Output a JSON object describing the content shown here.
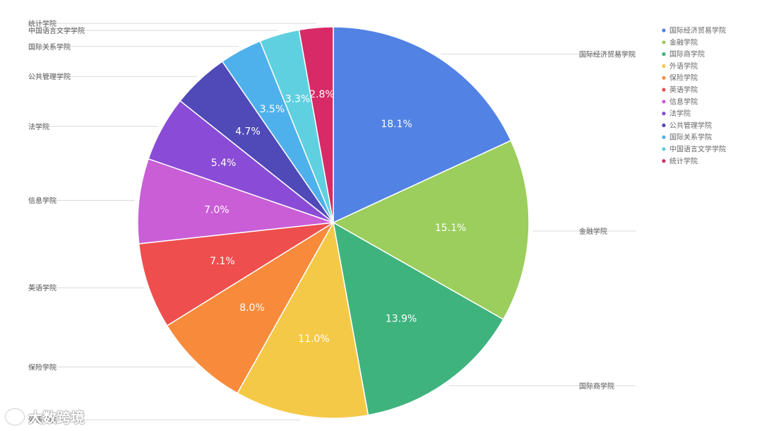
{
  "chart_data": {
    "type": "pie",
    "categories": [
      "国际经济贸易学院",
      "金融学院",
      "国际商学院",
      "外语学院",
      "保险学院",
      "英语学院",
      "信息学院",
      "法学院",
      "公共管理学院",
      "国际关系学院",
      "中国语言文学学院",
      "统计学院"
    ],
    "values": [
      18.1,
      15.1,
      13.9,
      11.0,
      8.0,
      7.1,
      7.0,
      5.4,
      4.7,
      3.5,
      3.3,
      2.8
    ],
    "labels": [
      "18.1%",
      "15.1%",
      "13.9%",
      "11.0%",
      "8.0%",
      "7.1%",
      "7.0%",
      "5.4%",
      "4.7%",
      "3.5%",
      "3.3%",
      "2.8%"
    ],
    "colors": [
      "#5282e4",
      "#9bce5c",
      "#3fb37e",
      "#f5c948",
      "#f78b3b",
      "#ef4e4e",
      "#c95ed6",
      "#8a4cd6",
      "#5049b8",
      "#4fb1ec",
      "#5fd0e0",
      "#d72a67"
    ],
    "legend_position": "top-right",
    "grid": false
  },
  "watermark": {
    "text": "大数跨境"
  }
}
